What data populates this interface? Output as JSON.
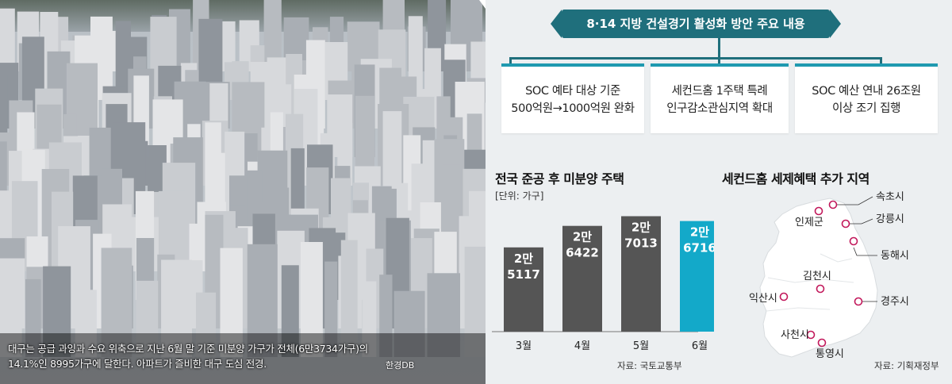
{
  "photo": {
    "caption_line1": "대구는 공급 과잉과 수요 위축으로 지난 6월 말 기준 미분양 가구가 전체(6만3734가구)의",
    "caption_line2": "14.1%인 8995가구에 달한다. 아파트가 즐비한 대구 도심 전경.",
    "credit": "한경DB"
  },
  "infographic": {
    "title": "8·14 지방 건설경기 활성화 방안 주요 내용",
    "cards": [
      {
        "line1": "SOC 예타 대상 기준",
        "line2": "500억원→1000억원 완화"
      },
      {
        "line1": "세컨드홈 1주택 특례",
        "line2": "인구감소관심지역 확대"
      },
      {
        "line1": "SOC 예산 연내 26조원",
        "line2": "이상 조기 집행"
      }
    ],
    "accent_color": "#1f6f7c",
    "highlight_color": "#13a9c9",
    "bar_color": "#555555"
  },
  "chart_data": {
    "type": "bar",
    "title": "전국 준공 후 미분양 주택",
    "unit": "[단위: 가구]",
    "categories": [
      "3월",
      "4월",
      "5월",
      "6월"
    ],
    "values": [
      25117,
      26422,
      27013,
      26716
    ],
    "value_labels": [
      [
        "2만",
        "5117"
      ],
      [
        "2만",
        "6422"
      ],
      [
        "2만",
        "7013"
      ],
      [
        "2만",
        "6716"
      ]
    ],
    "highlight_index": 3,
    "ylim": [
      20000,
      28000
    ],
    "source": "자료: 국토교통부"
  },
  "map": {
    "title": "세컨드홈 세제혜택 추가 지역",
    "regions": [
      "속초시",
      "인제군",
      "강릉시",
      "동해시",
      "김천시",
      "익산시",
      "경주시",
      "사천시",
      "통영시"
    ],
    "source": "자료: 기획재정부"
  }
}
